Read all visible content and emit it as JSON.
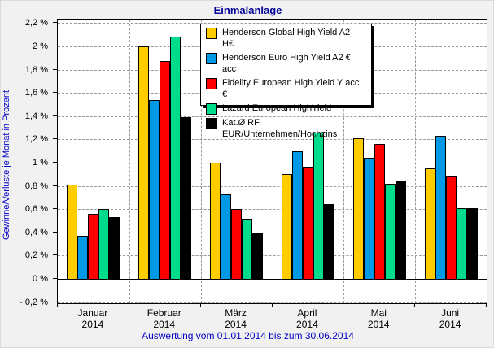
{
  "chart_data": {
    "type": "bar",
    "title": "Einmalanlage",
    "footnote": "Auswertung vom 01.01.2014 bis zum 30.06.2014",
    "ylabel": "Gewinne/Verluste je Monat in Prozent",
    "categories": [
      "Januar",
      "Februar",
      "März",
      "April",
      "Mai",
      "Juni"
    ],
    "category_year": "2014",
    "series": [
      {
        "name": "Henderson Global High Yield A2 H€",
        "color": "#ffcc00",
        "values": [
          0.81,
          2.0,
          1.0,
          0.9,
          1.21,
          0.95
        ]
      },
      {
        "name": "Henderson Euro High Yield A2 € acc",
        "color": "#0099e6",
        "values": [
          0.37,
          1.54,
          0.73,
          1.1,
          1.04,
          1.23
        ]
      },
      {
        "name": "Fidelity European High Yield Y acc €",
        "color": "#ff0000",
        "values": [
          0.56,
          1.87,
          0.6,
          0.96,
          1.16,
          0.88
        ]
      },
      {
        "name": "Lazard European HighYield",
        "color": "#00dc8c",
        "values": [
          0.6,
          2.08,
          0.52,
          1.26,
          0.82,
          0.61
        ]
      },
      {
        "name": "Kat.Ø RF EUR/Unternehmen/Hochzins",
        "color": "#000000",
        "values": [
          0.53,
          1.39,
          0.39,
          0.64,
          0.84,
          0.61
        ]
      }
    ],
    "ylim": [
      -0.2,
      2.2
    ],
    "ytick_step": 0.2,
    "yticks": [
      {
        "value": 2.2,
        "label": "2,2 %"
      },
      {
        "value": 2.0,
        "label": "2 %"
      },
      {
        "value": 1.8,
        "label": "1,8 %"
      },
      {
        "value": 1.6,
        "label": "1,6 %"
      },
      {
        "value": 1.4,
        "label": "1,4 %"
      },
      {
        "value": 1.2,
        "label": "1,2 %"
      },
      {
        "value": 1.0,
        "label": "1 %"
      },
      {
        "value": 0.8,
        "label": "0,8 %"
      },
      {
        "value": 0.6,
        "label": "0,6 %"
      },
      {
        "value": 0.4,
        "label": "0,4 %"
      },
      {
        "value": 0.2,
        "label": "0,2 %"
      },
      {
        "value": 0.0,
        "label": "0 %"
      },
      {
        "value": -0.2,
        "label": "- 0,2 %"
      }
    ],
    "grid": true,
    "legend_position": "top-center-inside",
    "colors": {
      "background": "#f1f1f1",
      "plot_background": "#ffffff",
      "title": "#000099",
      "axis_text": "#000000",
      "blue_text": "#0000c8",
      "gridline": "#999999"
    }
  }
}
